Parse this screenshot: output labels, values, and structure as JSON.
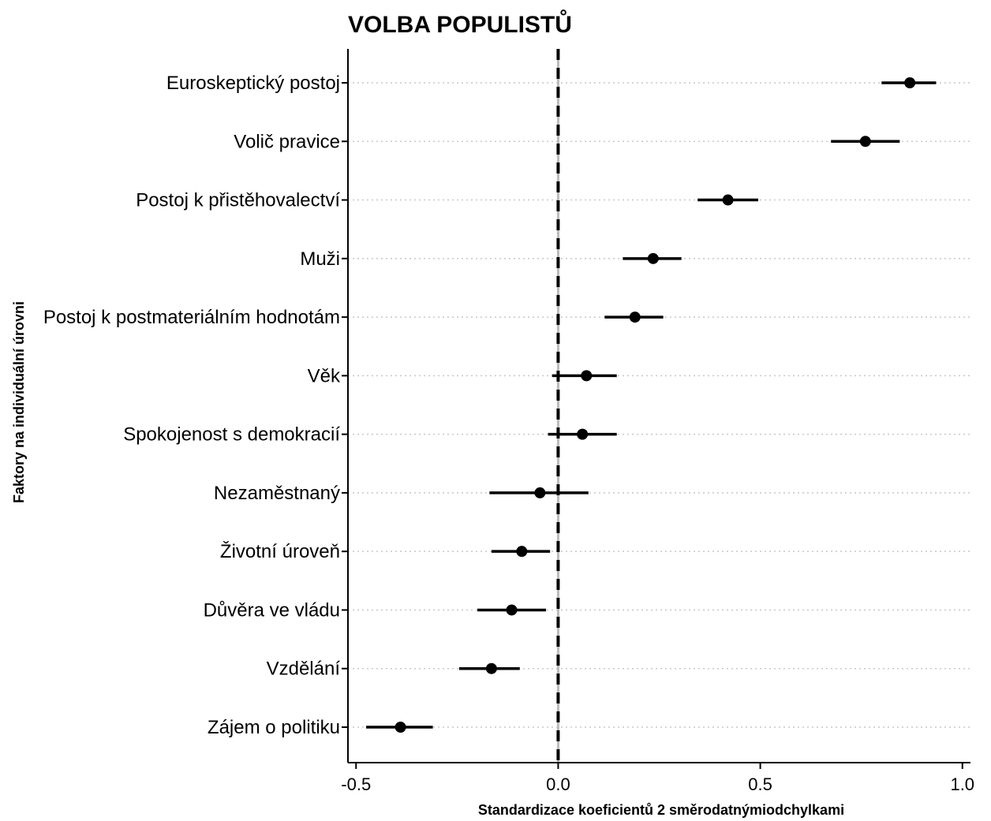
{
  "chart_data": {
    "type": "scatter",
    "title": "VOLBA POPULISTŮ",
    "xlabel": "Standardizace koeficientů 2 směrodatnýmiodchylkami",
    "ylabel": "Faktory na individuální úrovni",
    "xlim": [
      -0.52,
      1.02
    ],
    "xticks": [
      -0.5,
      0.0,
      0.5,
      1.0
    ],
    "xtick_labels": [
      "-0.5",
      "0.0",
      "0.5",
      "1.0"
    ],
    "reference_line": 0,
    "grid": "dotted horizontal lines",
    "categories": [
      "Euroskeptický postoj",
      "Volič pravice",
      "Postoj k přistěhovalectví",
      "Muži",
      "Postoj k postmateriálním hodnotám",
      "Věk",
      "Spokojenost s demokracií",
      "Nezaměstnaný",
      "Životní úroveň",
      "Důvěra ve vládu",
      "Vzdělání",
      "Zájem o politiku"
    ],
    "estimates": [
      0.87,
      0.76,
      0.42,
      0.235,
      0.19,
      0.07,
      0.06,
      -0.045,
      -0.09,
      -0.115,
      -0.165,
      -0.39
    ],
    "ci_low": [
      0.8,
      0.675,
      0.345,
      0.16,
      0.115,
      -0.015,
      -0.025,
      -0.17,
      -0.165,
      -0.2,
      -0.245,
      -0.475
    ],
    "ci_high": [
      0.935,
      0.845,
      0.495,
      0.305,
      0.26,
      0.145,
      0.145,
      0.075,
      -0.02,
      -0.03,
      -0.095,
      -0.31
    ]
  }
}
